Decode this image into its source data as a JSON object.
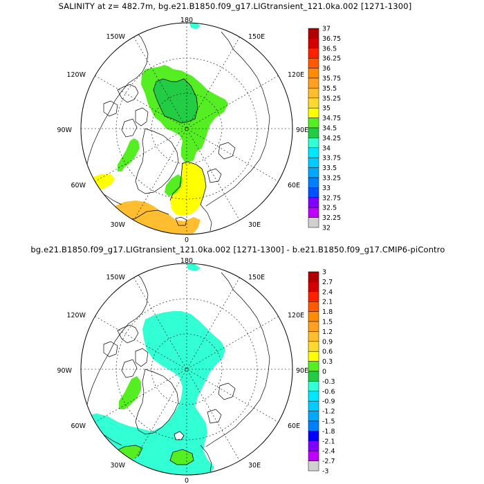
{
  "panels": [
    {
      "title": "SALINITY at z= 482.7m, bg.e21.B1850.f09_g17.LIGtransient_121.0ka.002 [1271-1300]",
      "lon_labels": [
        "180",
        "150W",
        "150E",
        "120W",
        "120E",
        "90W",
        "90E",
        "60W",
        "60E",
        "30W",
        "30E",
        "0"
      ],
      "colorbar": {
        "labels": [
          "37",
          "36.75",
          "36.5",
          "36.25",
          "36",
          "35.75",
          "35.5",
          "35.25",
          "35",
          "34.75",
          "34.5",
          "34.25",
          "34",
          "33.75",
          "33.5",
          "33.25",
          "33",
          "32.75",
          "32.5",
          "32.25",
          "32"
        ],
        "colors": [
          "#b00000",
          "#d40000",
          "#ff2000",
          "#ff5a00",
          "#ff8c00",
          "#ffa020",
          "#ffbe30",
          "#ffd830",
          "#ffff00",
          "#55ee22",
          "#22cc44",
          "#33ffd5",
          "#00e8ff",
          "#00ccff",
          "#00a8ff",
          "#0080ff",
          "#0050ff",
          "#8000ff",
          "#c000ff",
          "#d0d0d0",
          "#707070"
        ]
      }
    },
    {
      "title": "bg.e21.B1850.f09_g17.LIGtransient_121.0ka.002 [1271-1300] - b.e21.B1850.f09_g17.CMIP6-piContro",
      "lon_labels": [
        "180",
        "150W",
        "150E",
        "120W",
        "120E",
        "90W",
        "90E",
        "60W",
        "60E",
        "30W",
        "30E",
        "0"
      ],
      "colorbar": {
        "labels": [
          "3",
          "2.7",
          "2.4",
          "2.1",
          "1.8",
          "1.5",
          "1.2",
          "0.9",
          "0.6",
          "0.3",
          "0",
          "-0.3",
          "-0.6",
          "-0.9",
          "-1.2",
          "-1.5",
          "-1.8",
          "-2.1",
          "-2.4",
          "-2.7",
          "-3"
        ],
        "colors": [
          "#b00000",
          "#d40000",
          "#ff2000",
          "#ff5a00",
          "#ff8c00",
          "#ffa020",
          "#ffbe30",
          "#ffd830",
          "#ffff00",
          "#55ee22",
          "#22cc44",
          "#33ffd5",
          "#00e8ff",
          "#00ccff",
          "#00a8ff",
          "#0080ff",
          "#0000ff",
          "#8000ff",
          "#c000ff",
          "#d0d0d0",
          "#707070"
        ]
      }
    }
  ]
}
